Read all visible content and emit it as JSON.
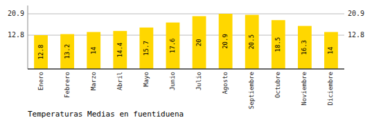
{
  "chart_data": {
    "type": "bar",
    "title": "Temperaturas Medias en fuentiduena",
    "categories": [
      "Enero",
      "Febrero",
      "Marzo",
      "Abril",
      "Mayo",
      "Junio",
      "Julio",
      "Agosto",
      "Septiembre",
      "Octubre",
      "Noviembre",
      "Diciembre"
    ],
    "values": [
      12.8,
      13.2,
      14.0,
      14.4,
      15.7,
      17.6,
      20.0,
      20.9,
      20.5,
      18.5,
      16.3,
      14.0
    ],
    "color": "#FFD700",
    "ylim": [
      0,
      24.035
    ],
    "yticks": [
      12.8,
      20.9
    ],
    "grid": true,
    "data_labels": true
  }
}
